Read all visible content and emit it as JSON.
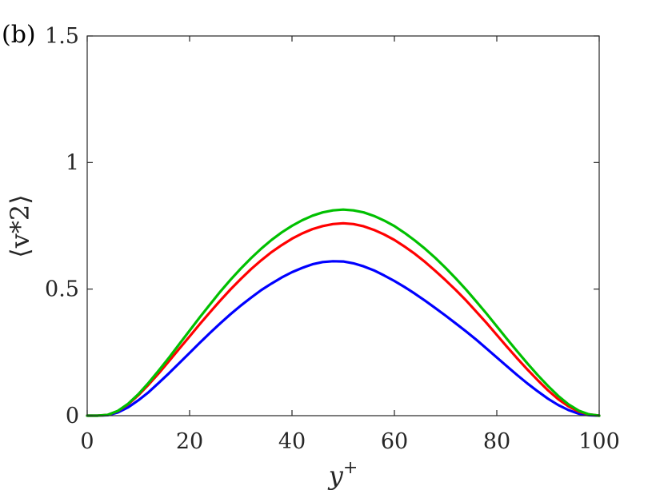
{
  "panel_label": "(b)",
  "chart_data": {
    "type": "line",
    "title": "",
    "xlabel_base": "y",
    "xlabel_sup": "+",
    "ylabel_text": "⟨v*2⟩",
    "xlim": [
      0,
      100
    ],
    "ylim": [
      0,
      1.5
    ],
    "xticks": [
      0,
      20,
      40,
      60,
      80,
      100
    ],
    "xtick_labels": [
      "0",
      "20",
      "40",
      "60",
      "80",
      "100"
    ],
    "yticks": [
      0,
      0.5,
      1,
      1.5
    ],
    "ytick_labels": [
      "0",
      "0.5",
      "1",
      "1.5"
    ],
    "grid": false,
    "x": [
      0,
      2,
      4,
      6,
      8,
      10,
      12,
      14,
      16,
      18,
      20,
      22,
      24,
      26,
      28,
      30,
      32,
      34,
      36,
      38,
      40,
      42,
      44,
      46,
      48,
      50,
      52,
      54,
      56,
      58,
      60,
      62,
      64,
      66,
      68,
      70,
      72,
      74,
      76,
      78,
      80,
      82,
      84,
      86,
      88,
      90,
      92,
      94,
      96,
      98,
      100
    ],
    "series": [
      {
        "color": "#0000ff",
        "values": [
          0,
          0,
          0.002,
          0.013,
          0.033,
          0.061,
          0.093,
          0.13,
          0.168,
          0.208,
          0.248,
          0.288,
          0.327,
          0.365,
          0.401,
          0.435,
          0.466,
          0.496,
          0.522,
          0.546,
          0.567,
          0.584,
          0.598,
          0.607,
          0.61,
          0.609,
          0.602,
          0.59,
          0.574,
          0.554,
          0.532,
          0.508,
          0.482,
          0.454,
          0.425,
          0.395,
          0.364,
          0.333,
          0.3,
          0.265,
          0.23,
          0.195,
          0.16,
          0.127,
          0.096,
          0.067,
          0.042,
          0.022,
          0.008,
          0.002,
          0
        ]
      },
      {
        "color": "#ff0000",
        "values": [
          0,
          0,
          0.003,
          0.018,
          0.045,
          0.081,
          0.123,
          0.168,
          0.216,
          0.265,
          0.313,
          0.362,
          0.409,
          0.455,
          0.499,
          0.54,
          0.579,
          0.614,
          0.646,
          0.674,
          0.699,
          0.72,
          0.737,
          0.749,
          0.757,
          0.76,
          0.757,
          0.748,
          0.734,
          0.716,
          0.694,
          0.668,
          0.639,
          0.607,
          0.572,
          0.535,
          0.496,
          0.455,
          0.411,
          0.366,
          0.319,
          0.272,
          0.226,
          0.182,
          0.14,
          0.1,
          0.065,
          0.037,
          0.016,
          0.005,
          0
        ]
      },
      {
        "color": "#00c000",
        "values": [
          0,
          0,
          0.003,
          0.019,
          0.047,
          0.085,
          0.13,
          0.179,
          0.23,
          0.283,
          0.336,
          0.389,
          0.44,
          0.49,
          0.537,
          0.581,
          0.622,
          0.66,
          0.694,
          0.724,
          0.75,
          0.772,
          0.79,
          0.803,
          0.811,
          0.814,
          0.811,
          0.803,
          0.789,
          0.771,
          0.749,
          0.722,
          0.692,
          0.659,
          0.623,
          0.584,
          0.542,
          0.498,
          0.451,
          0.403,
          0.353,
          0.303,
          0.254,
          0.206,
          0.16,
          0.117,
          0.078,
          0.045,
          0.02,
          0.005,
          0
        ]
      }
    ]
  }
}
